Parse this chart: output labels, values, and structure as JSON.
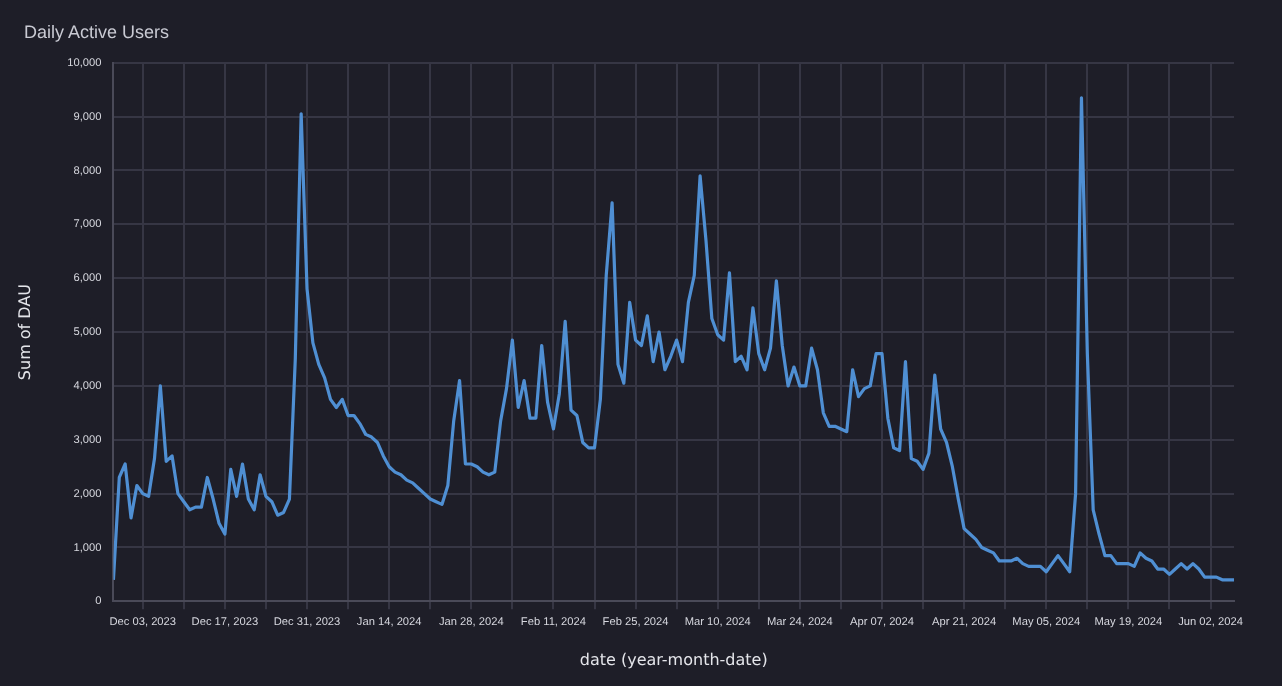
{
  "chart_data": {
    "type": "line",
    "title": "Daily Active Users",
    "xlabel": "date (year-month-date)",
    "ylabel": "Sum of DAU",
    "x": [
      "2023-11-28",
      "2023-11-29",
      "2023-11-30",
      "2023-12-01",
      "2023-12-02",
      "2023-12-03",
      "2023-12-04",
      "2023-12-05",
      "2023-12-06",
      "2023-12-07",
      "2023-12-08",
      "2023-12-09",
      "2023-12-10",
      "2023-12-11",
      "2023-12-12",
      "2023-12-13",
      "2023-12-14",
      "2023-12-15",
      "2023-12-16",
      "2023-12-17",
      "2023-12-18",
      "2023-12-19",
      "2023-12-20",
      "2023-12-21",
      "2023-12-22",
      "2023-12-23",
      "2023-12-24",
      "2023-12-25",
      "2023-12-26",
      "2023-12-27",
      "2023-12-28",
      "2023-12-29",
      "2023-12-30",
      "2023-12-31",
      "2024-01-01",
      "2024-01-02",
      "2024-01-03",
      "2024-01-04",
      "2024-01-05",
      "2024-01-06",
      "2024-01-07",
      "2024-01-08",
      "2024-01-09",
      "2024-01-10",
      "2024-01-11",
      "2024-01-12",
      "2024-01-13",
      "2024-01-14",
      "2024-01-15",
      "2024-01-16",
      "2024-01-17",
      "2024-01-18",
      "2024-01-19",
      "2024-01-20",
      "2024-01-21",
      "2024-01-22",
      "2024-01-23",
      "2024-01-24",
      "2024-01-25",
      "2024-01-26",
      "2024-01-27",
      "2024-01-28",
      "2024-01-29",
      "2024-01-30",
      "2024-01-31",
      "2024-02-01",
      "2024-02-02",
      "2024-02-03",
      "2024-02-04",
      "2024-02-05",
      "2024-02-06",
      "2024-02-07",
      "2024-02-08",
      "2024-02-09",
      "2024-02-10",
      "2024-02-11",
      "2024-02-12",
      "2024-02-13",
      "2024-02-14",
      "2024-02-15",
      "2024-02-16",
      "2024-02-17",
      "2024-02-18",
      "2024-02-19",
      "2024-02-20",
      "2024-02-21",
      "2024-02-22",
      "2024-02-23",
      "2024-02-24",
      "2024-02-25",
      "2024-02-26",
      "2024-02-27",
      "2024-02-28",
      "2024-02-29",
      "2024-03-01",
      "2024-03-02",
      "2024-03-03",
      "2024-03-04",
      "2024-03-05",
      "2024-03-06",
      "2024-03-07",
      "2024-03-08",
      "2024-03-09",
      "2024-03-10",
      "2024-03-11",
      "2024-03-12",
      "2024-03-13",
      "2024-03-14",
      "2024-03-15",
      "2024-03-16",
      "2024-03-17",
      "2024-03-18",
      "2024-03-19",
      "2024-03-20",
      "2024-03-21",
      "2024-03-22",
      "2024-03-23",
      "2024-03-24",
      "2024-03-25",
      "2024-03-26",
      "2024-03-27",
      "2024-03-28",
      "2024-03-29",
      "2024-03-30",
      "2024-03-31",
      "2024-04-01",
      "2024-04-02",
      "2024-04-03",
      "2024-04-04",
      "2024-04-05",
      "2024-04-06",
      "2024-04-07",
      "2024-04-08",
      "2024-04-09",
      "2024-04-10",
      "2024-04-11",
      "2024-04-12",
      "2024-04-13",
      "2024-04-14",
      "2024-04-15",
      "2024-04-16",
      "2024-04-17",
      "2024-04-18",
      "2024-04-19",
      "2024-04-20",
      "2024-04-21",
      "2024-04-22",
      "2024-04-23",
      "2024-04-24",
      "2024-04-25",
      "2024-04-26",
      "2024-04-27",
      "2024-04-28",
      "2024-04-29",
      "2024-04-30",
      "2024-05-01",
      "2024-05-02",
      "2024-05-03",
      "2024-05-04",
      "2024-05-05",
      "2024-05-06",
      "2024-05-07",
      "2024-05-08",
      "2024-05-09",
      "2024-05-10",
      "2024-05-11",
      "2024-05-12",
      "2024-05-13",
      "2024-05-14",
      "2024-05-15",
      "2024-05-16",
      "2024-05-17",
      "2024-05-18",
      "2024-05-19",
      "2024-05-20",
      "2024-05-21",
      "2024-05-22",
      "2024-05-23",
      "2024-05-24",
      "2024-05-25",
      "2024-05-26",
      "2024-05-27",
      "2024-05-28",
      "2024-05-29",
      "2024-05-30",
      "2024-05-31",
      "2024-06-01",
      "2024-06-02",
      "2024-06-03",
      "2024-06-04",
      "2024-06-05",
      "2024-06-06"
    ],
    "series": [
      {
        "color": "#4f8fd3",
        "values": [
          400,
          2300,
          2550,
          1550,
          2150,
          2000,
          1950,
          2650,
          4000,
          2600,
          2700,
          2000,
          1850,
          1700,
          1750,
          1750,
          2300,
          1900,
          1450,
          1250,
          2450,
          1950,
          2550,
          1900,
          1700,
          2350,
          1950,
          1850,
          1600,
          1650,
          1900,
          4500,
          9050,
          5800,
          4800,
          4400,
          4150,
          3750,
          3600,
          3750,
          3450,
          3450,
          3300,
          3100,
          3050,
          2950,
          2700,
          2500,
          2400,
          2350,
          2250,
          2200,
          2100,
          2000,
          1900,
          1850,
          1800,
          2150,
          3350,
          4100,
          2550,
          2550,
          2500,
          2400,
          2350,
          2400,
          3350,
          3950,
          4850,
          3600,
          4100,
          3400,
          3400,
          4750,
          3700,
          3200,
          3850,
          5200,
          3550,
          3450,
          2950,
          2850,
          2850,
          3750,
          6050,
          7400,
          4400,
          4050,
          5550,
          4850,
          4750,
          5300,
          4450,
          5000,
          4300,
          4550,
          4850,
          4450,
          5550,
          6050,
          7900,
          6700,
          5250,
          4950,
          4850,
          6100,
          4450,
          4550,
          4300,
          5450,
          4600,
          4300,
          4700,
          5950,
          4750,
          4000,
          4350,
          4000,
          4000,
          4700,
          4300,
          3500,
          3250,
          3250,
          3200,
          3150,
          4300,
          3800,
          3950,
          4000,
          4600,
          4600,
          3400,
          2850,
          2800,
          4450,
          2650,
          2600,
          2450,
          2750,
          4200,
          3200,
          2950,
          2500,
          1900,
          1350,
          1250,
          1150,
          1000,
          950,
          900,
          750,
          750,
          750,
          800,
          700,
          650,
          650,
          650,
          550,
          700,
          850,
          700,
          550,
          2000,
          9350,
          4600,
          1700,
          1250,
          850,
          850,
          700,
          700,
          700,
          650,
          900,
          800,
          750,
          600,
          600,
          500,
          600,
          700,
          600,
          700,
          600,
          450,
          450,
          450,
          400,
          400,
          400
        ]
      }
    ],
    "xlim": [
      "2023-11-28",
      "2024-06-06"
    ],
    "xticks": [
      {
        "value": "2023-12-03",
        "label": "Dec 03, 2023"
      },
      {
        "value": "2023-12-10",
        "label": null
      },
      {
        "value": "2023-12-17",
        "label": "Dec 17, 2023"
      },
      {
        "value": "2023-12-24",
        "label": null
      },
      {
        "value": "2023-12-31",
        "label": "Dec 31, 2023"
      },
      {
        "value": "2024-01-07",
        "label": null
      },
      {
        "value": "2024-01-14",
        "label": "Jan 14, 2024"
      },
      {
        "value": "2024-01-21",
        "label": null
      },
      {
        "value": "2024-01-28",
        "label": "Jan 28, 2024"
      },
      {
        "value": "2024-02-04",
        "label": null
      },
      {
        "value": "2024-02-11",
        "label": "Feb 11, 2024"
      },
      {
        "value": "2024-02-18",
        "label": null
      },
      {
        "value": "2024-02-25",
        "label": "Feb 25, 2024"
      },
      {
        "value": "2024-03-03",
        "label": null
      },
      {
        "value": "2024-03-10",
        "label": "Mar 10, 2024"
      },
      {
        "value": "2024-03-17",
        "label": null
      },
      {
        "value": "2024-03-24",
        "label": "Mar 24, 2024"
      },
      {
        "value": "2024-03-31",
        "label": null
      },
      {
        "value": "2024-04-07",
        "label": "Apr 07, 2024"
      },
      {
        "value": "2024-04-14",
        "label": null
      },
      {
        "value": "2024-04-21",
        "label": "Apr 21, 2024"
      },
      {
        "value": "2024-04-28",
        "label": null
      },
      {
        "value": "2024-05-05",
        "label": "May 05, 2024"
      },
      {
        "value": "2024-05-12",
        "label": null
      },
      {
        "value": "2024-05-19",
        "label": "May 19, 2024"
      },
      {
        "value": "2024-05-26",
        "label": null
      },
      {
        "value": "2024-06-02",
        "label": "Jun 02, 2024"
      }
    ],
    "ylim": [
      0,
      10000
    ],
    "yticks": [
      {
        "value": 0,
        "label": "0"
      },
      {
        "value": 1000,
        "label": "1,000"
      },
      {
        "value": 2000,
        "label": "2,000"
      },
      {
        "value": 3000,
        "label": "3,000"
      },
      {
        "value": 4000,
        "label": "4,000"
      },
      {
        "value": 5000,
        "label": "5,000"
      },
      {
        "value": 6000,
        "label": "6,000"
      },
      {
        "value": 7000,
        "label": "7,000"
      },
      {
        "value": 8000,
        "label": "8,000"
      },
      {
        "value": 9000,
        "label": "9,000"
      },
      {
        "value": 10000,
        "label": "10,000"
      }
    ],
    "grid": true,
    "legend": false,
    "marker": "none",
    "line_style": "solid"
  }
}
